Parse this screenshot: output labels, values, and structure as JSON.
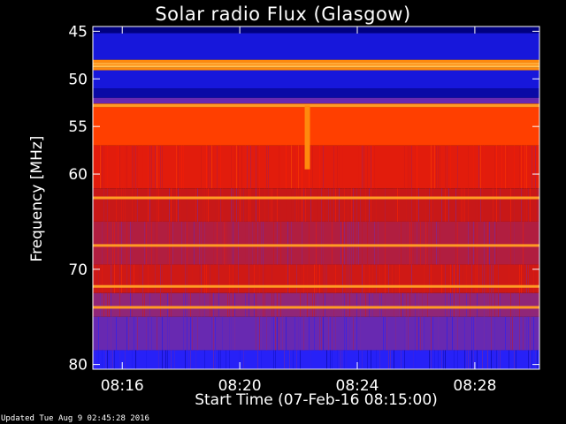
{
  "chart_data": {
    "type": "heatmap",
    "title": "Solar radio Flux (Glasgow)",
    "ylabel": "Frequency [MHz]",
    "xlabel": "Start Time (07-Feb-16 08:15:00)",
    "ylim": [
      44.5,
      80.5
    ],
    "y_reversed": true,
    "yticks": [
      45,
      50,
      55,
      60,
      70,
      80
    ],
    "xlim_minutes_after_0815": [
      0,
      15.2
    ],
    "xticks": [
      {
        "label": "08:16",
        "minutes": 1
      },
      {
        "label": "08:20",
        "minutes": 5
      },
      {
        "label": "08:24",
        "minutes": 9
      },
      {
        "label": "08:28",
        "minutes": 13
      }
    ],
    "colormap": [
      "#000080",
      "#2020ff",
      "#7a2b9e",
      "#c81818",
      "#ff2000",
      "#ff8000",
      "#ffe080"
    ],
    "frequency_bands": [
      {
        "from": 44.5,
        "to": 45.2,
        "level": 0.0
      },
      {
        "from": 45.2,
        "to": 48.0,
        "level": 0.12
      },
      {
        "from": 48.0,
        "to": 48.3,
        "level": 0.85
      },
      {
        "from": 48.3,
        "to": 48.8,
        "level": 0.95
      },
      {
        "from": 48.8,
        "to": 49.1,
        "level": 0.85
      },
      {
        "from": 49.1,
        "to": 51.0,
        "level": 0.12
      },
      {
        "from": 51.0,
        "to": 52.0,
        "level": 0.05
      },
      {
        "from": 52.0,
        "to": 52.6,
        "level": 0.3
      },
      {
        "from": 52.6,
        "to": 53.0,
        "level": 0.8
      },
      {
        "from": 53.0,
        "to": 57.0,
        "level": 0.72
      },
      {
        "from": 57.0,
        "to": 61.5,
        "level": 0.58
      },
      {
        "from": 61.5,
        "to": 65.0,
        "level": 0.5
      },
      {
        "from": 65.0,
        "to": 69.5,
        "level": 0.45
      },
      {
        "from": 69.5,
        "to": 72.5,
        "level": 0.52
      },
      {
        "from": 72.5,
        "to": 75.0,
        "level": 0.38
      },
      {
        "from": 75.0,
        "to": 78.5,
        "level": 0.3
      },
      {
        "from": 78.5,
        "to": 80.5,
        "level": 0.18
      }
    ],
    "bright_lines_mhz": [
      48.5,
      52.8,
      62.5,
      67.5,
      71.8,
      74.0
    ],
    "burst": {
      "minutes": 7.3,
      "from": 52.8,
      "to": 59.5,
      "level": 0.85
    }
  },
  "footer": {
    "updated": "Updated Tue Aug  9 02:45:28 2016"
  }
}
